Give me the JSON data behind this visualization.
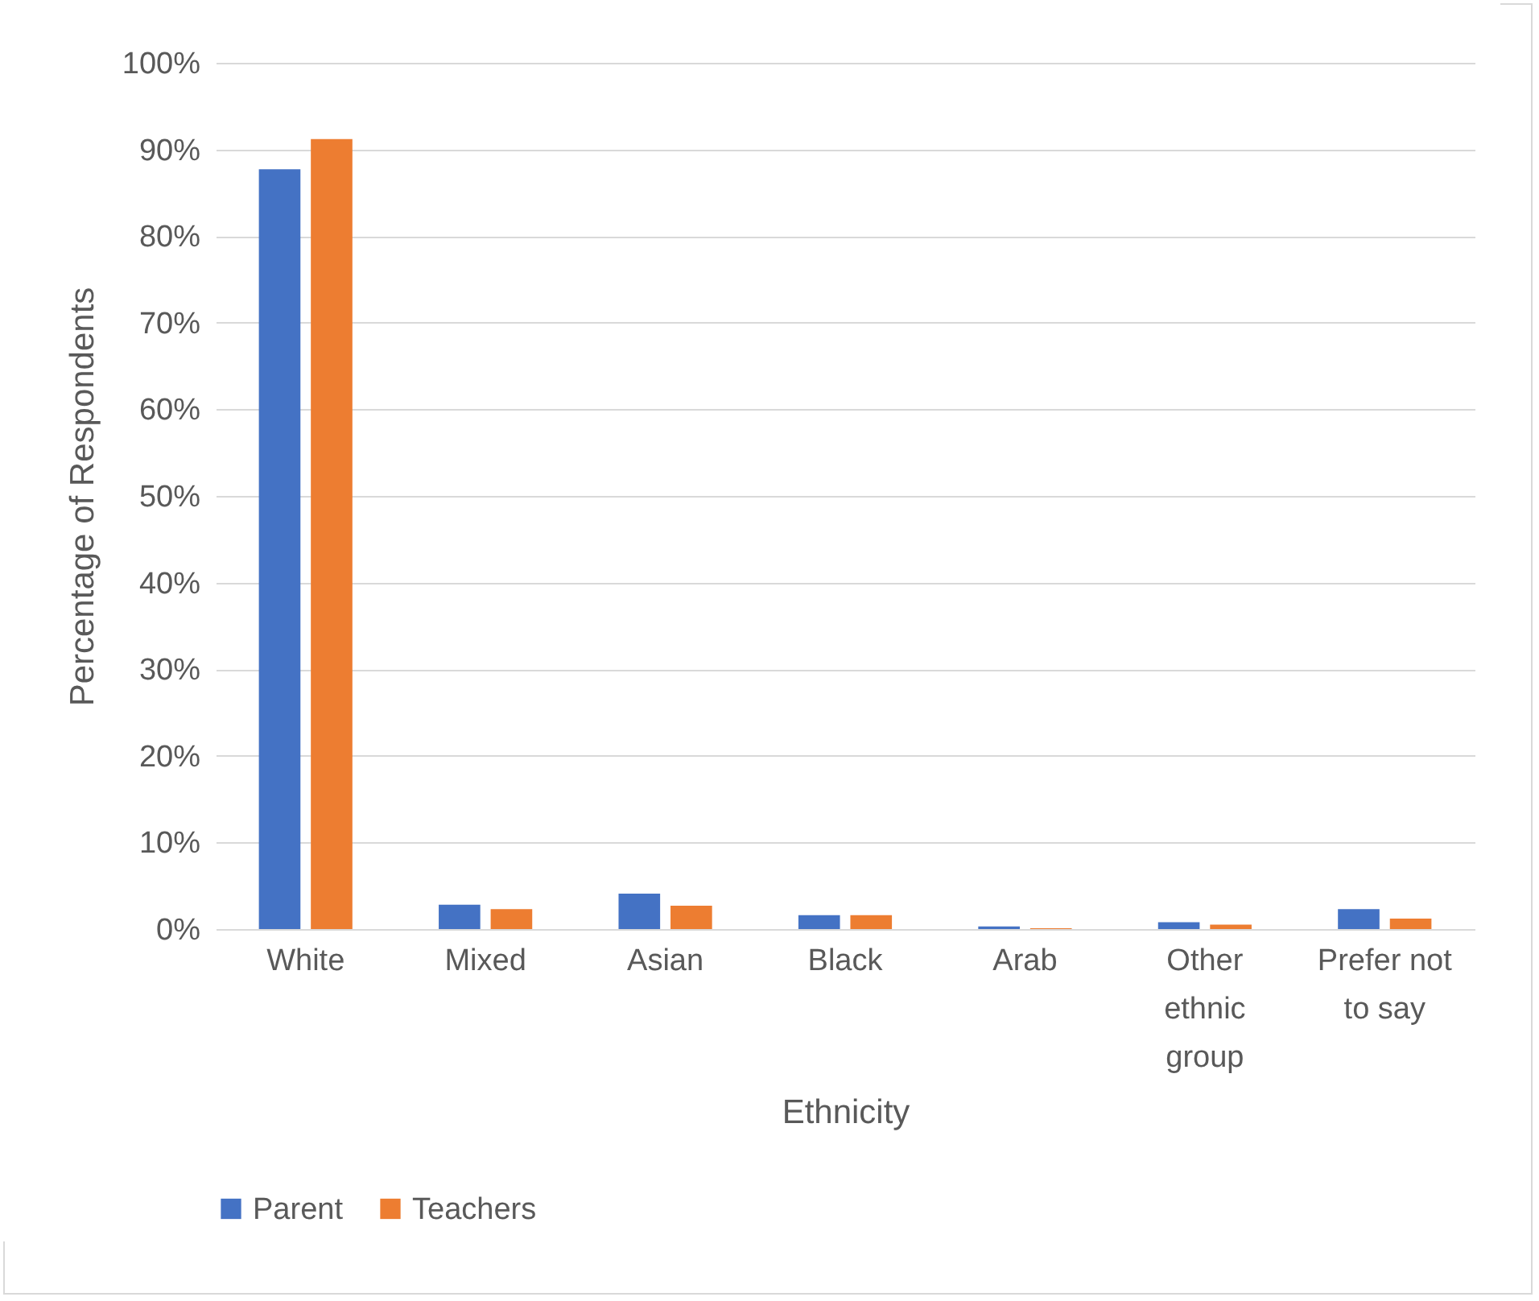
{
  "chart_data": {
    "type": "bar",
    "xlabel": "Ethnicity",
    "ylabel": "Percentage of Respondents",
    "categories": [
      "White",
      "Mixed",
      "Asian",
      "Black",
      "Arab",
      "Other ethnic group",
      "Prefer not to say"
    ],
    "series": [
      {
        "name": "Parent",
        "color": "#4472c4",
        "values": [
          87.7,
          2.8,
          4.1,
          1.6,
          0.3,
          0.8,
          2.3
        ]
      },
      {
        "name": "Teachers",
        "color": "#ed7d31",
        "values": [
          91.2,
          2.3,
          2.7,
          1.6,
          0.1,
          0.5,
          1.2
        ]
      }
    ],
    "ylim": [
      0,
      100
    ],
    "yticks": [
      {
        "value": 0,
        "label": "0%"
      },
      {
        "value": 10,
        "label": "10%"
      },
      {
        "value": 20,
        "label": "20%"
      },
      {
        "value": 30,
        "label": "30%"
      },
      {
        "value": 40,
        "label": "40%"
      },
      {
        "value": 50,
        "label": "50%"
      },
      {
        "value": 60,
        "label": "60%"
      },
      {
        "value": 70,
        "label": "70%"
      },
      {
        "value": 80,
        "label": "80%"
      },
      {
        "value": 90,
        "label": "90%"
      },
      {
        "value": 100,
        "label": "100%"
      }
    ],
    "grid": "y",
    "legend": "bottom"
  }
}
